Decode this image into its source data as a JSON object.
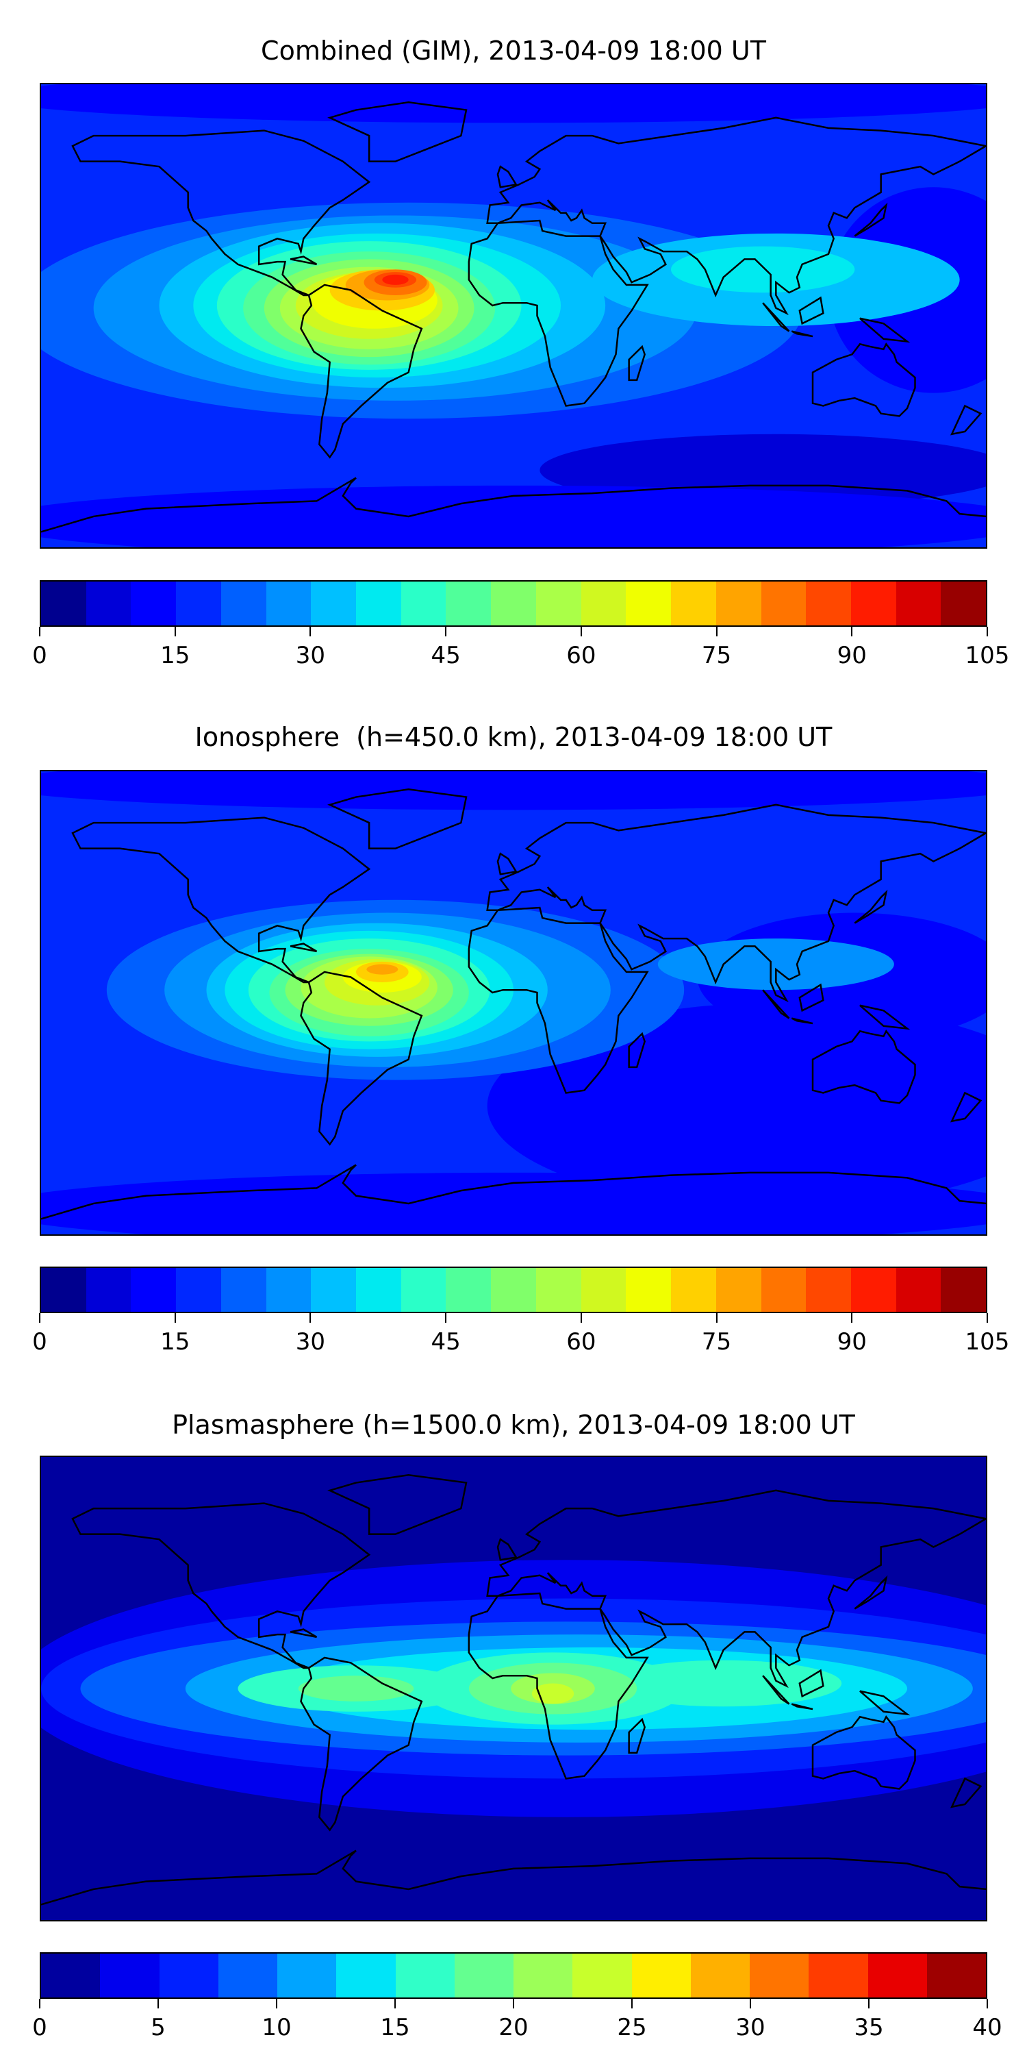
{
  "panels": [
    {
      "title": "Combined (GIM), 2013-04-09 18:00 UT",
      "levels_step": 5,
      "vmin": 0,
      "vmax": 105,
      "tick_labels": [
        "0",
        "15",
        "30",
        "45",
        "60",
        "75",
        "90",
        "105"
      ],
      "colors": [
        "#00008f",
        "#0000d8",
        "#0000ff",
        "#0028ff",
        "#0060ff",
        "#0090ff",
        "#00c0ff",
        "#00eaf0",
        "#2affc8",
        "#50ff9a",
        "#80ff6a",
        "#aaff48",
        "#d0f820",
        "#f0ff00",
        "#ffd000",
        "#ffa400",
        "#ff7400",
        "#ff4800",
        "#ff1c00",
        "#d80000",
        "#980000"
      ]
    },
    {
      "title": "Ionosphere  (h=450.0 km), 2013-04-09 18:00 UT",
      "levels_step": 5,
      "vmin": 0,
      "vmax": 105,
      "tick_labels": [
        "0",
        "15",
        "30",
        "45",
        "60",
        "75",
        "90",
        "105"
      ],
      "colors": [
        "#00008f",
        "#0000d8",
        "#0000ff",
        "#0028ff",
        "#0060ff",
        "#0090ff",
        "#00c0ff",
        "#00eaf0",
        "#2affc8",
        "#50ff9a",
        "#80ff6a",
        "#aaff48",
        "#d0f820",
        "#f0ff00",
        "#ffd000",
        "#ffa400",
        "#ff7400",
        "#ff4800",
        "#ff1c00",
        "#d80000",
        "#980000"
      ]
    },
    {
      "title": "Plasmasphere (h=1500.0 km), 2013-04-09 18:00 UT",
      "levels_step": 2.5,
      "vmin": 0,
      "vmax": 40,
      "tick_labels": [
        "0",
        "5",
        "10",
        "15",
        "20",
        "25",
        "30",
        "35",
        "40"
      ],
      "colors": [
        "#00009f",
        "#0000ee",
        "#0020ff",
        "#0060ff",
        "#00a4ff",
        "#00e4f8",
        "#30ffc8",
        "#64ff90",
        "#9cff58",
        "#c8ff2c",
        "#ffee00",
        "#ffb000",
        "#ff7400",
        "#ff3c00",
        "#e80000",
        "#9e0000"
      ]
    }
  ],
  "chart_data": [
    {
      "type": "heatmap",
      "title": "Combined (GIM), 2013-04-09 18:00 UT",
      "colorbar_range": [
        0,
        105
      ],
      "colorbar_ticks": [
        0,
        15,
        30,
        45,
        60,
        75,
        90,
        105
      ],
      "levels": 21,
      "peak_region": "northern South America / Caribbean (~90-100)"
    },
    {
      "type": "heatmap",
      "title": "Ionosphere  (h=450.0 km), 2013-04-09 18:00 UT",
      "colorbar_range": [
        0,
        105
      ],
      "colorbar_ticks": [
        0,
        15,
        30,
        45,
        60,
        75,
        90,
        105
      ],
      "levels": 21,
      "peak_region": "northern South America (~75-80)"
    },
    {
      "type": "heatmap",
      "title": "Plasmasphere (h=1500.0 km), 2013-04-09 18:00 UT",
      "colorbar_range": [
        0,
        40
      ],
      "colorbar_ticks": [
        0,
        5,
        10,
        15,
        20,
        25,
        30,
        35,
        40
      ],
      "levels": 16,
      "peak_region": "central Africa (~22-25)"
    }
  ]
}
